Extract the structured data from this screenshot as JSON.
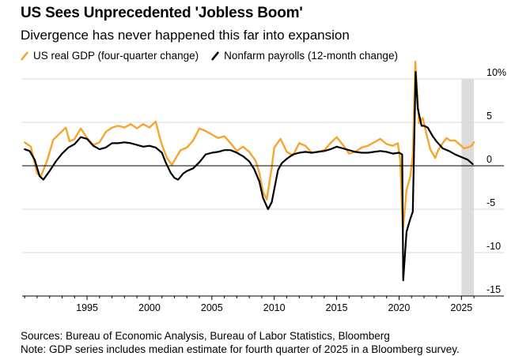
{
  "header": {
    "title": "US Sees Unprecedented 'Jobless Boom'",
    "subtitle": "Divergence has never happened this far into expansion"
  },
  "legend": {
    "items": [
      {
        "label": "US real GDP (four-quarter change)",
        "color": "#f7a52f"
      },
      {
        "label": "Nonfarm payrolls (12-month change)",
        "color": "#000000"
      }
    ]
  },
  "footer": {
    "sources": "Sources: Bureau of Economic Analysis, Bureau of Labor Statistics, Bloomberg",
    "note": "Note: GDP series includes median estimate for fourth quarter of 2025 in a Bloomberg survey."
  },
  "chart_data": {
    "type": "line",
    "title": "US Sees Unprecedented 'Jobless Boom'",
    "subtitle": "Divergence has never happened this far into expansion",
    "xlabel": "",
    "ylabel": "",
    "xlim": [
      1989.8,
      2026.5
    ],
    "ylim": [
      -15,
      10
    ],
    "x_ticks": [
      1995,
      2000,
      2005,
      2010,
      2015,
      2020,
      2025
    ],
    "x_tick_labels": [
      "1995",
      "2000",
      "2005",
      "2010",
      "2015",
      "2020",
      "2025"
    ],
    "y_ticks": [
      10,
      5,
      0,
      -5,
      -10,
      -15
    ],
    "y_tick_labels": [
      "10%",
      "5",
      "0",
      "-5",
      "-10",
      "-15"
    ],
    "zero_line": true,
    "grid": "horizontal",
    "shaded_region": [
      2025.0,
      2026.0
    ],
    "series": [
      {
        "name": "US real GDP (four-quarter change)",
        "color": "#f7a52f",
        "points": [
          [
            1990.0,
            2.7
          ],
          [
            1990.5,
            2.2
          ],
          [
            1991.0,
            -0.9
          ],
          [
            1991.3,
            -1.2
          ],
          [
            1991.8,
            0.6
          ],
          [
            1992.3,
            3.0
          ],
          [
            1992.8,
            3.7
          ],
          [
            1993.3,
            4.4
          ],
          [
            1993.6,
            2.8
          ],
          [
            1994.0,
            3.1
          ],
          [
            1994.5,
            4.3
          ],
          [
            1995.0,
            3.2
          ],
          [
            1995.5,
            2.4
          ],
          [
            1996.0,
            2.7
          ],
          [
            1996.5,
            3.9
          ],
          [
            1997.0,
            4.4
          ],
          [
            1997.5,
            4.6
          ],
          [
            1998.0,
            4.4
          ],
          [
            1998.5,
            4.8
          ],
          [
            1999.0,
            4.3
          ],
          [
            1999.5,
            4.8
          ],
          [
            2000.0,
            4.4
          ],
          [
            2000.5,
            5.1
          ],
          [
            2000.8,
            3.4
          ],
          [
            2001.0,
            2.4
          ],
          [
            2001.4,
            0.9
          ],
          [
            2001.8,
            0.1
          ],
          [
            2002.2,
            1.1
          ],
          [
            2002.5,
            1.8
          ],
          [
            2003.0,
            2.1
          ],
          [
            2003.5,
            2.9
          ],
          [
            2004.0,
            4.3
          ],
          [
            2004.5,
            4.0
          ],
          [
            2005.0,
            3.6
          ],
          [
            2005.5,
            3.2
          ],
          [
            2006.0,
            3.4
          ],
          [
            2006.5,
            2.6
          ],
          [
            2007.0,
            1.7
          ],
          [
            2007.5,
            2.2
          ],
          [
            2008.0,
            1.6
          ],
          [
            2008.5,
            0.6
          ],
          [
            2008.8,
            -0.8
          ],
          [
            2009.1,
            -3.0
          ],
          [
            2009.4,
            -3.9
          ],
          [
            2009.8,
            -0.2
          ],
          [
            2010.0,
            2.1
          ],
          [
            2010.5,
            3.1
          ],
          [
            2011.0,
            1.6
          ],
          [
            2011.5,
            1.2
          ],
          [
            2012.0,
            2.6
          ],
          [
            2012.5,
            2.3
          ],
          [
            2013.0,
            1.5
          ],
          [
            2013.5,
            1.6
          ],
          [
            2014.0,
            1.8
          ],
          [
            2014.5,
            2.6
          ],
          [
            2015.0,
            3.3
          ],
          [
            2015.5,
            2.4
          ],
          [
            2016.0,
            1.4
          ],
          [
            2016.5,
            1.6
          ],
          [
            2017.0,
            2.1
          ],
          [
            2017.5,
            2.3
          ],
          [
            2018.0,
            2.7
          ],
          [
            2018.5,
            3.1
          ],
          [
            2019.0,
            2.5
          ],
          [
            2019.5,
            2.3
          ],
          [
            2019.9,
            2.6
          ],
          [
            2020.1,
            0.6
          ],
          [
            2020.3,
            -7.5
          ],
          [
            2020.6,
            -2.8
          ],
          [
            2020.9,
            -1.2
          ],
          [
            2021.1,
            1.2
          ],
          [
            2021.3,
            12.0
          ],
          [
            2021.6,
            4.9
          ],
          [
            2021.9,
            5.5
          ],
          [
            2022.2,
            3.6
          ],
          [
            2022.5,
            1.9
          ],
          [
            2022.9,
            0.9
          ],
          [
            2023.1,
            1.7
          ],
          [
            2023.4,
            2.4
          ],
          [
            2023.8,
            3.2
          ],
          [
            2024.1,
            2.9
          ],
          [
            2024.5,
            2.9
          ],
          [
            2024.9,
            2.4
          ],
          [
            2025.2,
            2.0
          ],
          [
            2025.5,
            2.1
          ],
          [
            2025.8,
            2.3
          ],
          [
            2026.0,
            2.7
          ]
        ]
      },
      {
        "name": "Nonfarm payrolls (12-month change)",
        "color": "#000000",
        "points": [
          [
            1990.0,
            1.9
          ],
          [
            1990.4,
            1.7
          ],
          [
            1990.8,
            0.7
          ],
          [
            1991.2,
            -1.2
          ],
          [
            1991.5,
            -1.6
          ],
          [
            1992.0,
            -0.6
          ],
          [
            1992.5,
            0.5
          ],
          [
            1993.0,
            1.4
          ],
          [
            1993.5,
            2.1
          ],
          [
            1994.0,
            2.5
          ],
          [
            1994.5,
            3.3
          ],
          [
            1995.0,
            3.1
          ],
          [
            1995.5,
            2.3
          ],
          [
            1996.0,
            1.9
          ],
          [
            1996.5,
            2.1
          ],
          [
            1997.0,
            2.6
          ],
          [
            1997.5,
            2.6
          ],
          [
            1998.0,
            2.7
          ],
          [
            1998.5,
            2.6
          ],
          [
            1999.0,
            2.4
          ],
          [
            1999.5,
            2.2
          ],
          [
            2000.0,
            2.3
          ],
          [
            2000.5,
            2.1
          ],
          [
            2001.0,
            1.5
          ],
          [
            2001.3,
            0.4
          ],
          [
            2001.7,
            -0.8
          ],
          [
            2002.0,
            -1.4
          ],
          [
            2002.3,
            -1.6
          ],
          [
            2002.7,
            -0.9
          ],
          [
            2003.0,
            -0.6
          ],
          [
            2003.5,
            -0.3
          ],
          [
            2004.0,
            0.4
          ],
          [
            2004.5,
            1.3
          ],
          [
            2005.0,
            1.5
          ],
          [
            2005.5,
            1.6
          ],
          [
            2006.0,
            1.8
          ],
          [
            2006.5,
            1.8
          ],
          [
            2007.0,
            1.5
          ],
          [
            2007.5,
            1.1
          ],
          [
            2008.0,
            0.5
          ],
          [
            2008.4,
            -0.4
          ],
          [
            2008.8,
            -1.8
          ],
          [
            2009.1,
            -3.7
          ],
          [
            2009.5,
            -5.0
          ],
          [
            2009.8,
            -4.2
          ],
          [
            2010.0,
            -2.7
          ],
          [
            2010.3,
            -0.5
          ],
          [
            2010.6,
            0.3
          ],
          [
            2011.0,
            0.8
          ],
          [
            2011.5,
            1.3
          ],
          [
            2012.0,
            1.5
          ],
          [
            2012.5,
            1.6
          ],
          [
            2013.0,
            1.5
          ],
          [
            2013.5,
            1.6
          ],
          [
            2014.0,
            1.7
          ],
          [
            2014.5,
            1.9
          ],
          [
            2015.0,
            2.2
          ],
          [
            2015.5,
            2.0
          ],
          [
            2016.0,
            1.8
          ],
          [
            2016.5,
            1.6
          ],
          [
            2017.0,
            1.5
          ],
          [
            2017.5,
            1.5
          ],
          [
            2018.0,
            1.6
          ],
          [
            2018.5,
            1.7
          ],
          [
            2019.0,
            1.6
          ],
          [
            2019.5,
            1.4
          ],
          [
            2020.0,
            1.5
          ],
          [
            2020.25,
            1.3
          ],
          [
            2020.33,
            -13.2
          ],
          [
            2020.6,
            -7.6
          ],
          [
            2020.9,
            -6.1
          ],
          [
            2021.1,
            -5.3
          ],
          [
            2021.33,
            10.8
          ],
          [
            2021.5,
            6.6
          ],
          [
            2021.8,
            4.6
          ],
          [
            2022.0,
            4.6
          ],
          [
            2022.3,
            4.4
          ],
          [
            2022.7,
            3.4
          ],
          [
            2023.0,
            2.8
          ],
          [
            2023.5,
            2.0
          ],
          [
            2024.0,
            1.7
          ],
          [
            2024.5,
            1.3
          ],
          [
            2025.0,
            1.0
          ],
          [
            2025.5,
            0.7
          ],
          [
            2025.9,
            0.2
          ]
        ]
      }
    ]
  }
}
